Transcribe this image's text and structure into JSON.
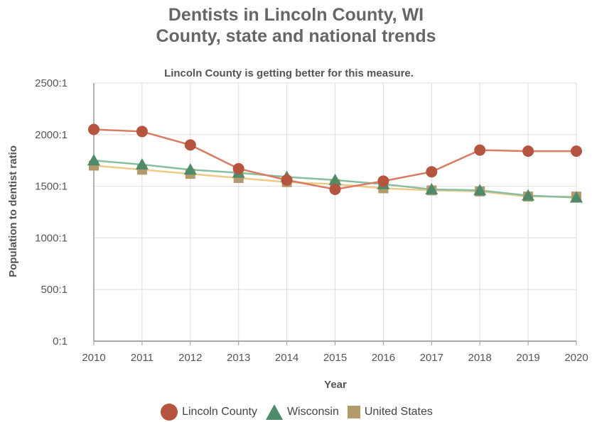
{
  "chart_data": {
    "type": "line",
    "title": "Dentists in Lincoln County, WI",
    "subtitle": "County, state and national trends",
    "annotation": "Lincoln County is getting better for this measure.",
    "xlabel": "Year",
    "ylabel": "Population to dentist ratio",
    "x": [
      "2010",
      "2011",
      "2012",
      "2013",
      "2014",
      "2015",
      "2016",
      "2017",
      "2018",
      "2019",
      "2020"
    ],
    "ylim": [
      0,
      2500
    ],
    "yticks": [
      0,
      500,
      1000,
      1500,
      2000,
      2500
    ],
    "ytick_labels": [
      "0:1",
      "500:1",
      "1000:1",
      "1500:1",
      "2000:1",
      "2500:1"
    ],
    "grid": true,
    "legend_position": "bottom",
    "series": [
      {
        "name": "Lincoln County",
        "marker": "circle",
        "color": "#b5553f",
        "line_color": "#d97a62",
        "values": [
          2050,
          2030,
          1900,
          1670,
          1560,
          1470,
          1550,
          1640,
          1850,
          1840,
          1840
        ]
      },
      {
        "name": "Wisconsin",
        "marker": "triangle",
        "color": "#4f8a6b",
        "line_color": "#86bfa2",
        "values": [
          1750,
          1710,
          1660,
          1630,
          1590,
          1560,
          1520,
          1470,
          1460,
          1410,
          1390
        ]
      },
      {
        "name": "United States",
        "marker": "square",
        "color": "#b39a6a",
        "line_color": "#f0c987",
        "values": [
          1700,
          1660,
          1620,
          1580,
          1540,
          1520,
          1480,
          1460,
          1450,
          1400,
          1400
        ]
      }
    ]
  }
}
